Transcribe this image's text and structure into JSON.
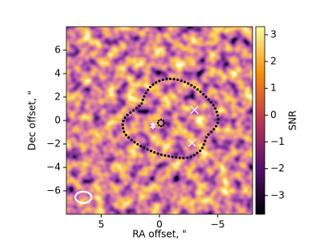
{
  "chart_data": {
    "type": "heatmap",
    "x_label": "RA offset, \"",
    "y_label": "Dec offset, \"",
    "colorbar_label": "SNR",
    "xlim": [
      8,
      -8
    ],
    "ylim": [
      -8,
      8
    ],
    "xticks": [
      5,
      0,
      {
        "value": -5,
        "label": "−5"
      }
    ],
    "yticks": [
      {
        "value": -6,
        "label": "−6"
      },
      {
        "value": -4,
        "label": "−4"
      },
      {
        "value": -2,
        "label": "−2"
      },
      0,
      2,
      4,
      6
    ],
    "clim": [
      -3.7,
      3.3
    ],
    "cticks": [
      {
        "value": -3,
        "label": "−3"
      },
      {
        "value": -2,
        "label": "−2"
      },
      {
        "value": -1,
        "label": "−1"
      },
      0,
      1,
      2,
      3
    ],
    "markers": {
      "x": [
        -3,
        -2.8
      ],
      "y": [
        0.9,
        -1.9
      ],
      "color": "#ffffff"
    }
  }
}
